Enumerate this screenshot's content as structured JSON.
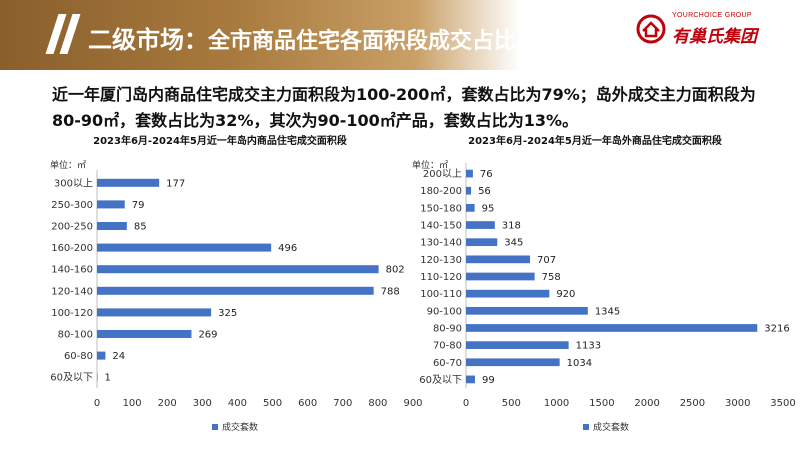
{
  "header": {
    "title_main": "二级市场：",
    "title_sub": "全市商品住宅各面积段成交占比（按套数）"
  },
  "logo": {
    "en": "YOURCHOICE GROUP",
    "cn": "有巢氏集团"
  },
  "summary": "近一年厦门岛内商品住宅成交主力面积段为100-200㎡，套数占比为79%；岛外成交主力面积段为80-90㎡，套数占比为32%，其次为90-100㎡产品，套数占比为13%。",
  "colors": {
    "bar": "#4472c4",
    "header": "#a87a3e",
    "logo": "#c0000a"
  },
  "chart_data": [
    {
      "type": "bar",
      "orientation": "horizontal",
      "title": "2023年6月-2024年5月近一年岛内商品住宅成交面积段",
      "unit_label": "单位：㎡",
      "categories": [
        "300以上",
        "250-300",
        "200-250",
        "160-200",
        "140-160",
        "120-140",
        "100-120",
        "80-100",
        "60-80",
        "60及以下"
      ],
      "series": [
        {
          "name": "成交套数",
          "values": [
            177,
            79,
            85,
            496,
            802,
            788,
            325,
            269,
            24,
            1
          ]
        }
      ],
      "xlim": [
        0,
        900
      ],
      "xticks": [
        0,
        100,
        200,
        300,
        400,
        500,
        600,
        700,
        800,
        900
      ],
      "legend": "bottom",
      "grid": false
    },
    {
      "type": "bar",
      "orientation": "horizontal",
      "title": "2023年6月-2024年5月近一年岛外商品住宅成交面积段",
      "unit_label": "单位：㎡",
      "categories": [
        "200以上",
        "180-200",
        "150-180",
        "140-150",
        "130-140",
        "120-130",
        "110-120",
        "100-110",
        "90-100",
        "80-90",
        "70-80",
        "60-70",
        "60及以下"
      ],
      "series": [
        {
          "name": "成交套数",
          "values": [
            76,
            56,
            95,
            318,
            345,
            707,
            758,
            920,
            1345,
            3216,
            1133,
            1034,
            99
          ]
        }
      ],
      "xlim": [
        0,
        3500
      ],
      "xticks": [
        0,
        500,
        1000,
        1500,
        2000,
        2500,
        3000,
        3500
      ],
      "legend": "bottom",
      "grid": false
    }
  ]
}
